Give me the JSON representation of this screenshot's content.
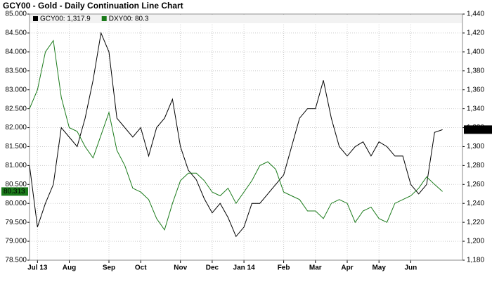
{
  "chart_data": {
    "type": "line",
    "title": "GCY00 - Gold - Daily Continuation Line Chart",
    "categories": [
      null,
      "Jul 13",
      null,
      null,
      null,
      "Aug",
      null,
      null,
      null,
      null,
      "Sep",
      null,
      null,
      null,
      "Oct",
      null,
      null,
      null,
      null,
      "Nov",
      null,
      null,
      null,
      "Dec",
      null,
      null,
      null,
      "Jan 14",
      null,
      null,
      null,
      null,
      "Feb",
      null,
      null,
      null,
      "Mar",
      null,
      null,
      null,
      "Apr",
      null,
      null,
      null,
      "May",
      null,
      null,
      null,
      "Jun",
      null,
      null,
      null,
      null
    ],
    "series": [
      {
        "name": "GCY00: 1,317.9",
        "color": "#000000",
        "axis": "y2",
        "values": [
          1280,
          1215,
          1240,
          1260,
          1320,
          1310,
          1300,
          1330,
          1370,
          1420,
          1400,
          1330,
          1320,
          1310,
          1320,
          1290,
          1320,
          1330,
          1350,
          1300,
          1275,
          1265,
          1245,
          1230,
          1240,
          1225,
          1205,
          1215,
          1240,
          1240,
          1250,
          1260,
          1270,
          1300,
          1330,
          1340,
          1340,
          1370,
          1330,
          1300,
          1290,
          1300,
          1305,
          1290,
          1305,
          1300,
          1290,
          1290,
          1260,
          1250,
          1260,
          1315,
          1317.9
        ],
        "value_labels": [
          null,
          null,
          null,
          null,
          null,
          null,
          null,
          null,
          null,
          null,
          null,
          null,
          null,
          null,
          null,
          null,
          null,
          null,
          null,
          null,
          null,
          null,
          null,
          null,
          null,
          null,
          null,
          null,
          null,
          null,
          null,
          null,
          null,
          null,
          null,
          null,
          null,
          null,
          null,
          null,
          null,
          null,
          null,
          null,
          null,
          null,
          null,
          null,
          null,
          null,
          null,
          null,
          "1,317.9"
        ]
      },
      {
        "name": "DXY00: 80.3",
        "color": "#1a7a1a",
        "axis": "y",
        "values": [
          82.5,
          83.0,
          84.0,
          84.3,
          82.8,
          82.0,
          81.9,
          81.5,
          81.2,
          81.8,
          82.4,
          81.4,
          81.0,
          80.4,
          80.3,
          80.1,
          79.6,
          79.3,
          80.0,
          80.6,
          80.8,
          80.8,
          80.6,
          80.3,
          80.2,
          80.4,
          80.0,
          80.3,
          80.6,
          81.0,
          81.1,
          80.9,
          80.3,
          80.2,
          80.1,
          79.8,
          79.8,
          79.6,
          80.0,
          80.1,
          80.0,
          79.5,
          79.8,
          79.9,
          79.6,
          79.5,
          80.0,
          80.1,
          80.2,
          80.4,
          80.7,
          80.5,
          80.313
        ],
        "value_labels": [
          null,
          null,
          null,
          null,
          null,
          null,
          null,
          null,
          null,
          null,
          null,
          null,
          null,
          null,
          null,
          null,
          null,
          null,
          null,
          null,
          null,
          null,
          null,
          null,
          null,
          null,
          null,
          null,
          null,
          null,
          null,
          null,
          null,
          null,
          null,
          null,
          null,
          null,
          null,
          null,
          null,
          null,
          null,
          null,
          null,
          null,
          null,
          null,
          null,
          null,
          null,
          null,
          "80.313"
        ]
      }
    ],
    "ylim": [
      78.5,
      85.0
    ],
    "yticks": [
      {
        "value": 78.5,
        "label": "78.500"
      },
      {
        "value": 79.0,
        "label": "79.000"
      },
      {
        "value": 79.5,
        "label": "79.500"
      },
      {
        "value": 80.0,
        "label": "80.000"
      },
      {
        "value": 80.5,
        "label": "80.500"
      },
      {
        "value": 81.0,
        "label": "81.000"
      },
      {
        "value": 81.5,
        "label": "81.500"
      },
      {
        "value": 82.0,
        "label": "82.000"
      },
      {
        "value": 82.5,
        "label": "82.500"
      },
      {
        "value": 83.0,
        "label": "83.000"
      },
      {
        "value": 83.5,
        "label": "83.500"
      },
      {
        "value": 84.0,
        "label": "84.000"
      },
      {
        "value": 84.5,
        "label": "84.500"
      },
      {
        "value": 85.0,
        "label": "85.000"
      }
    ],
    "y2lim": [
      1180,
      1440
    ],
    "y2ticks": [
      {
        "value": 1180,
        "label": "1,180"
      },
      {
        "value": 1200,
        "label": "1,200"
      },
      {
        "value": 1220,
        "label": "1,220"
      },
      {
        "value": 1240,
        "label": "1,240"
      },
      {
        "value": 1260,
        "label": "1,260"
      },
      {
        "value": 1280,
        "label": "1,280"
      },
      {
        "value": 1300,
        "label": "1,300"
      },
      {
        "value": 1320,
        "label": "1,320"
      },
      {
        "value": 1340,
        "label": "1,340"
      },
      {
        "value": 1360,
        "label": "1,360"
      },
      {
        "value": 1380,
        "label": "1,380"
      },
      {
        "value": 1400,
        "label": "1,400"
      },
      {
        "value": 1420,
        "label": "1,420"
      },
      {
        "value": 1440,
        "label": "1,440"
      }
    ],
    "grid": true
  }
}
